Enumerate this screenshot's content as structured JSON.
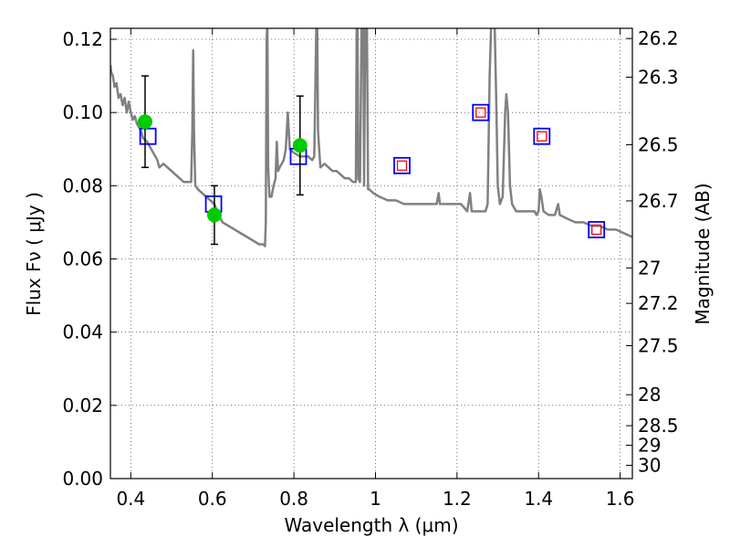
{
  "chart_data": {
    "type": "line",
    "xlabel": "Wavelength  λ (μm)",
    "ylabel": "Flux  Fν  ( μJy )",
    "ylabel_right": "Magnitude (AB)",
    "xlim": [
      0.35,
      1.63
    ],
    "ylim": [
      0.0,
      0.123
    ],
    "grid": true,
    "x_ticks": [
      0.4,
      0.6,
      0.8,
      1.0,
      1.2,
      1.4,
      1.6
    ],
    "x_tick_labels": [
      "0.4",
      "0.6",
      "0.8",
      "1",
      "1.2",
      "1.4",
      "1.6"
    ],
    "y_ticks": [
      0.0,
      0.02,
      0.04,
      0.06,
      0.08,
      0.1,
      0.12
    ],
    "y_tick_labels": [
      "0.00",
      "0.02",
      "0.04",
      "0.06",
      "0.08",
      "0.10",
      "0.12"
    ],
    "mag_ticks": [
      26.2,
      26.3,
      26.5,
      26.7,
      27,
      27.2,
      27.5,
      28,
      28.5,
      29,
      30
    ],
    "mag_tick_labels": [
      "26.2",
      "26.3",
      "26.5",
      "26.7",
      "27",
      "27.2",
      "27.5",
      "28",
      "28.5",
      "29",
      "30"
    ],
    "colors": {
      "sed": "#808080",
      "observed": "#00cc00",
      "model_box": "#0000ff",
      "model_inner": "#ff0000",
      "errorbar": "#000000",
      "grid": "#555555"
    },
    "sed_spectrum": [
      [
        0.35,
        0.113
      ],
      [
        0.352,
        0.111
      ],
      [
        0.356,
        0.11
      ],
      [
        0.36,
        0.107
      ],
      [
        0.365,
        0.108
      ],
      [
        0.37,
        0.104
      ],
      [
        0.375,
        0.105
      ],
      [
        0.38,
        0.102
      ],
      [
        0.385,
        0.104
      ],
      [
        0.39,
        0.1
      ],
      [
        0.395,
        0.103
      ],
      [
        0.4,
        0.1
      ],
      [
        0.405,
        0.098
      ],
      [
        0.41,
        0.099
      ],
      [
        0.415,
        0.097
      ],
      [
        0.42,
        0.096
      ],
      [
        0.425,
        0.095
      ],
      [
        0.43,
        0.093
      ],
      [
        0.44,
        0.092
      ],
      [
        0.45,
        0.09
      ],
      [
        0.46,
        0.088
      ],
      [
        0.465,
        0.087
      ],
      [
        0.47,
        0.085
      ],
      [
        0.48,
        0.086
      ],
      [
        0.49,
        0.085
      ],
      [
        0.5,
        0.084
      ],
      [
        0.51,
        0.083
      ],
      [
        0.52,
        0.082
      ],
      [
        0.53,
        0.081
      ],
      [
        0.54,
        0.081
      ],
      [
        0.548,
        0.081
      ],
      [
        0.551,
        0.095
      ],
      [
        0.553,
        0.117
      ],
      [
        0.555,
        0.095
      ],
      [
        0.558,
        0.08
      ],
      [
        0.565,
        0.079
      ],
      [
        0.575,
        0.078
      ],
      [
        0.585,
        0.077
      ],
      [
        0.595,
        0.076
      ],
      [
        0.605,
        0.075
      ],
      [
        0.615,
        0.072
      ],
      [
        0.625,
        0.07
      ],
      [
        0.64,
        0.069
      ],
      [
        0.655,
        0.068
      ],
      [
        0.67,
        0.067
      ],
      [
        0.685,
        0.066
      ],
      [
        0.7,
        0.065
      ],
      [
        0.715,
        0.064
      ],
      [
        0.725,
        0.064
      ],
      [
        0.729,
        0.0635
      ],
      [
        0.731,
        0.07
      ],
      [
        0.733,
        0.12
      ],
      [
        0.735,
        0.125
      ],
      [
        0.737,
        0.085
      ],
      [
        0.74,
        0.077
      ],
      [
        0.745,
        0.077
      ],
      [
        0.75,
        0.08
      ],
      [
        0.755,
        0.082
      ],
      [
        0.758,
        0.092
      ],
      [
        0.761,
        0.084
      ],
      [
        0.765,
        0.085
      ],
      [
        0.775,
        0.087
      ],
      [
        0.78,
        0.09
      ],
      [
        0.785,
        0.1
      ],
      [
        0.79,
        0.09
      ],
      [
        0.8,
        0.089
      ],
      [
        0.815,
        0.088
      ],
      [
        0.825,
        0.088
      ],
      [
        0.835,
        0.088
      ],
      [
        0.845,
        0.087
      ],
      [
        0.85,
        0.088
      ],
      [
        0.853,
        0.11
      ],
      [
        0.855,
        0.125
      ],
      [
        0.857,
        0.125
      ],
      [
        0.859,
        0.095
      ],
      [
        0.865,
        0.085
      ],
      [
        0.875,
        0.086
      ],
      [
        0.885,
        0.085
      ],
      [
        0.895,
        0.084
      ],
      [
        0.905,
        0.084
      ],
      [
        0.915,
        0.083
      ],
      [
        0.925,
        0.082
      ],
      [
        0.935,
        0.082
      ],
      [
        0.945,
        0.081
      ],
      [
        0.952,
        0.081
      ],
      [
        0.954,
        0.125
      ],
      [
        0.956,
        0.125
      ],
      [
        0.958,
        0.082
      ],
      [
        0.962,
        0.081
      ],
      [
        0.966,
        0.125
      ],
      [
        0.97,
        0.125
      ],
      [
        0.972,
        0.08
      ],
      [
        0.975,
        0.125
      ],
      [
        0.979,
        0.125
      ],
      [
        0.982,
        0.079
      ],
      [
        0.985,
        0.079
      ],
      [
        0.995,
        0.078
      ],
      [
        1.01,
        0.077
      ],
      [
        1.03,
        0.076
      ],
      [
        1.05,
        0.076
      ],
      [
        1.07,
        0.075
      ],
      [
        1.09,
        0.075
      ],
      [
        1.11,
        0.075
      ],
      [
        1.13,
        0.075
      ],
      [
        1.15,
        0.075
      ],
      [
        1.155,
        0.078
      ],
      [
        1.158,
        0.075
      ],
      [
        1.17,
        0.075
      ],
      [
        1.19,
        0.075
      ],
      [
        1.21,
        0.075
      ],
      [
        1.225,
        0.073
      ],
      [
        1.232,
        0.078
      ],
      [
        1.236,
        0.073
      ],
      [
        1.245,
        0.073
      ],
      [
        1.26,
        0.073
      ],
      [
        1.27,
        0.073
      ],
      [
        1.275,
        0.075
      ],
      [
        1.28,
        0.11
      ],
      [
        1.284,
        0.125
      ],
      [
        1.292,
        0.125
      ],
      [
        1.296,
        0.105
      ],
      [
        1.3,
        0.08
      ],
      [
        1.305,
        0.075
      ],
      [
        1.312,
        0.077
      ],
      [
        1.318,
        0.1
      ],
      [
        1.321,
        0.105
      ],
      [
        1.325,
        0.1
      ],
      [
        1.33,
        0.08
      ],
      [
        1.335,
        0.075
      ],
      [
        1.345,
        0.073
      ],
      [
        1.36,
        0.073
      ],
      [
        1.375,
        0.073
      ],
      [
        1.39,
        0.073
      ],
      [
        1.395,
        0.072
      ],
      [
        1.4,
        0.073
      ],
      [
        1.403,
        0.079
      ],
      [
        1.407,
        0.077
      ],
      [
        1.412,
        0.073
      ],
      [
        1.425,
        0.072
      ],
      [
        1.44,
        0.072
      ],
      [
        1.448,
        0.075
      ],
      [
        1.452,
        0.072
      ],
      [
        1.47,
        0.071
      ],
      [
        1.49,
        0.07
      ],
      [
        1.51,
        0.07
      ],
      [
        1.53,
        0.069
      ],
      [
        1.55,
        0.069
      ],
      [
        1.57,
        0.068
      ],
      [
        1.59,
        0.068
      ],
      [
        1.61,
        0.067
      ],
      [
        1.63,
        0.066
      ]
    ],
    "observed_points": [
      {
        "x": 0.435,
        "y": 0.0975,
        "yerr": 0.0125
      },
      {
        "x": 0.605,
        "y": 0.072,
        "yerr": 0.008
      },
      {
        "x": 0.815,
        "y": 0.091,
        "yerr": 0.0135
      }
    ],
    "model_photometry": [
      {
        "x": 0.442,
        "y": 0.0935,
        "kind": "box_only"
      },
      {
        "x": 0.603,
        "y": 0.075,
        "kind": "box_only"
      },
      {
        "x": 0.811,
        "y": 0.088,
        "kind": "box_only"
      },
      {
        "x": 1.065,
        "y": 0.0855,
        "kind": "box_with_inner"
      },
      {
        "x": 1.258,
        "y": 0.1,
        "kind": "box_with_inner"
      },
      {
        "x": 1.408,
        "y": 0.0935,
        "kind": "box_with_inner"
      },
      {
        "x": 1.542,
        "y": 0.068,
        "kind": "box_with_inner"
      }
    ]
  }
}
